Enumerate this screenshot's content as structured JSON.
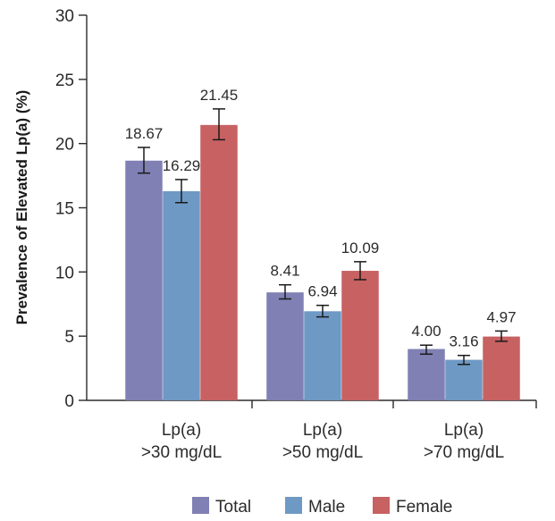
{
  "chart_data": {
    "type": "bar",
    "title": "",
    "ylabel": "Prevalence of Elevated Lp(a) (%)",
    "xlabel": "",
    "ylim": [
      0,
      30
    ],
    "yticks": [
      0,
      5,
      10,
      15,
      20,
      25,
      30
    ],
    "grid": false,
    "legend_position": "bottom",
    "categories": [
      [
        "Lp(a)",
        ">30 mg/dL"
      ],
      [
        "Lp(a)",
        ">50 mg/dL"
      ],
      [
        "Lp(a)",
        ">70 mg/dL"
      ]
    ],
    "series": [
      {
        "name": "Total",
        "color": "#8080b5",
        "values": [
          18.67,
          8.41,
          4.0
        ],
        "value_labels": [
          "18.67",
          "8.41",
          "4.00"
        ],
        "err_low": [
          17.7,
          7.9,
          3.6
        ],
        "err_high": [
          19.7,
          9.0,
          4.3
        ]
      },
      {
        "name": "Male",
        "color": "#6e99c4",
        "values": [
          16.29,
          6.94,
          3.16
        ],
        "value_labels": [
          "16.29",
          "6.94",
          "3.16"
        ],
        "err_low": [
          15.4,
          6.5,
          2.8
        ],
        "err_high": [
          17.2,
          7.4,
          3.5
        ]
      },
      {
        "name": "Female",
        "color": "#c76162",
        "values": [
          21.45,
          10.09,
          4.97
        ],
        "value_labels": [
          "21.45",
          "10.09",
          "4.97"
        ],
        "err_low": [
          20.3,
          9.4,
          4.6
        ],
        "err_high": [
          22.7,
          10.8,
          5.4
        ]
      }
    ]
  }
}
